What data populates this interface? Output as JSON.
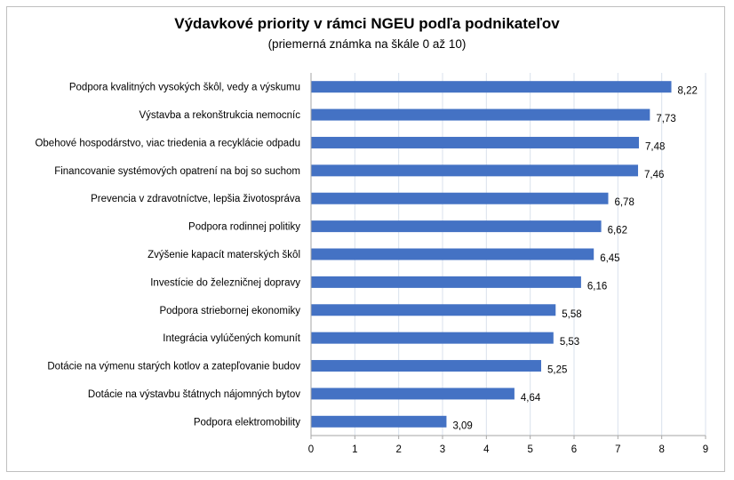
{
  "chart_data": {
    "type": "bar",
    "orientation": "horizontal",
    "title": "Výdavkové priority v rámci NGEU podľa podnikateľov",
    "subtitle": "(priemerná známka na škále 0 až 10)",
    "categories": [
      "Podpora kvalitných vysokých škôl, vedy a výskumu",
      "Výstavba a rekonštrukcia nemocníc",
      "Obehové hospodárstvo, viac triedenia a recyklácie odpadu",
      "Financovanie systémových opatrení na boj so suchom",
      "Prevencia v zdravotníctve, lepšia životospráva",
      "Podpora rodinnej politiky",
      "Zvýšenie kapacít materských škôl",
      "Investície do železničnej dopravy",
      "Podpora striebornej ekonomiky",
      "Integrácia vylúčených komunít",
      "Dotácie na výmenu starých kotlov a zatepľovanie budov",
      "Dotácie na výstavbu štátnych nájomných bytov",
      "Podpora elektromobility"
    ],
    "values": [
      8.22,
      7.73,
      7.48,
      7.46,
      6.78,
      6.62,
      6.45,
      6.16,
      5.58,
      5.53,
      5.25,
      4.64,
      3.09
    ],
    "value_labels": [
      "8,22",
      "7,73",
      "7,48",
      "7,46",
      "6,78",
      "6,62",
      "6,45",
      "6,16",
      "5,58",
      "5,53",
      "5,25",
      "4,64",
      "3,09"
    ],
    "xlim": [
      0,
      9
    ],
    "x_ticks": [
      "0",
      "1",
      "2",
      "3",
      "4",
      "5",
      "6",
      "7",
      "8",
      "9"
    ],
    "grid": true,
    "legend": "none",
    "colors": {
      "bar": "#4472c4",
      "grid": "#d9e1ec",
      "axis": "#a6a6a6"
    }
  }
}
